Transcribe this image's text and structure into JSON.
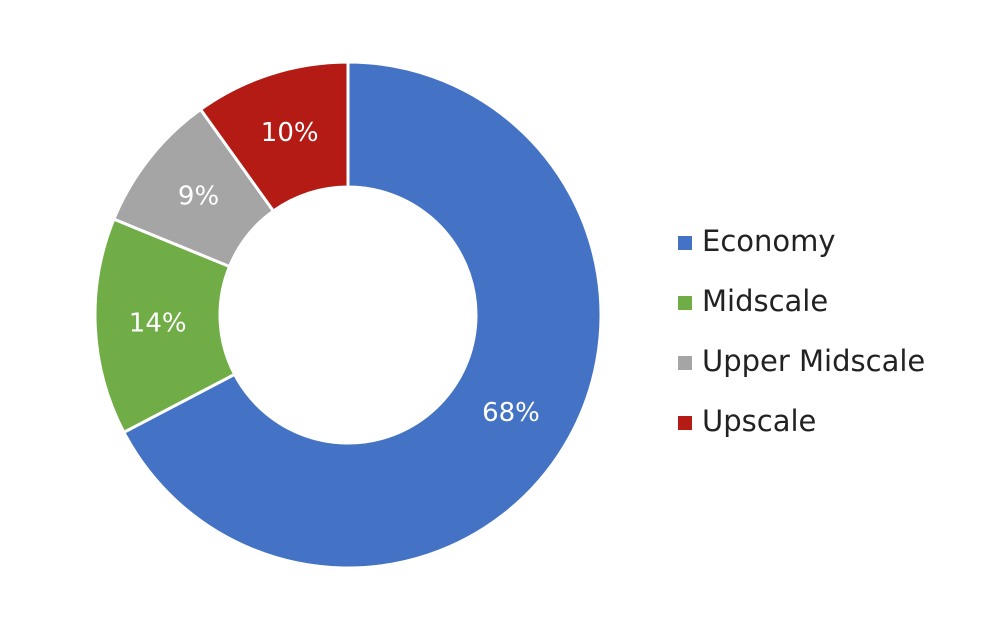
{
  "chart_data": {
    "type": "donut",
    "categories": [
      "Economy",
      "Midscale",
      "Upper Midscale",
      "Upscale"
    ],
    "values": [
      68,
      14,
      9,
      10
    ],
    "value_labels": [
      "68%",
      "14%",
      "9%",
      "10%"
    ],
    "colors": [
      "#4472c4",
      "#70ad47",
      "#a5a5a5",
      "#b31b14"
    ],
    "legend": "right"
  }
}
